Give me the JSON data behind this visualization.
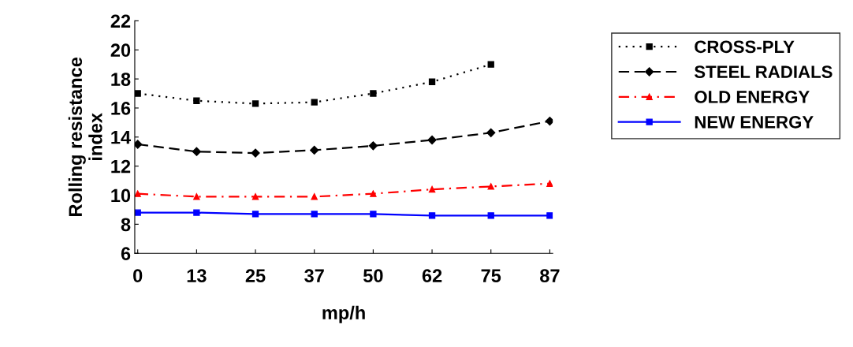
{
  "chart_data": {
    "type": "line",
    "xlabel": "mp/h",
    "ylabel": "Rolling resistance\nindex",
    "categories": [
      "0",
      "13",
      "25",
      "37",
      "50",
      "62",
      "75",
      "87"
    ],
    "series": [
      {
        "name": "CROSS-PLY",
        "color": "#000000",
        "line_style": "dotted",
        "marker": "square",
        "values": [
          17.0,
          16.5,
          16.3,
          16.4,
          17.0,
          17.8,
          19.0,
          null
        ]
      },
      {
        "name": "STEEL RADIALS",
        "color": "#000000",
        "line_style": "dashed",
        "marker": "diamond",
        "values": [
          13.5,
          13.0,
          12.9,
          13.1,
          13.4,
          13.8,
          14.3,
          15.1
        ]
      },
      {
        "name": "OLD ENERGY",
        "color": "#ff0000",
        "line_style": "dashdot",
        "marker": "triangle",
        "values": [
          10.1,
          9.9,
          9.9,
          9.9,
          10.1,
          10.4,
          10.6,
          10.8
        ]
      },
      {
        "name": "NEW ENERGY",
        "color": "#0000ff",
        "line_style": "solid",
        "marker": "square",
        "values": [
          8.8,
          8.8,
          8.7,
          8.7,
          8.7,
          8.6,
          8.6,
          8.6
        ]
      }
    ],
    "ylim": [
      6,
      22
    ],
    "yticks": [
      6,
      8,
      10,
      12,
      14,
      16,
      18,
      20,
      22
    ],
    "grid": false,
    "legend": "right"
  }
}
